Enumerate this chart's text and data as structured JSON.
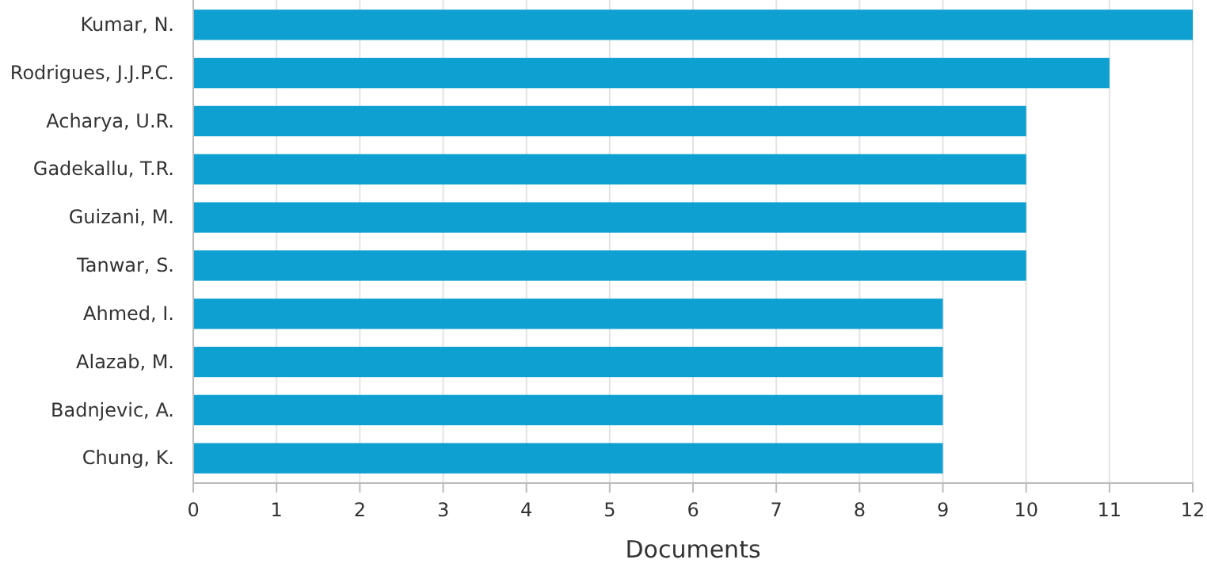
{
  "chart_data": {
    "type": "bar",
    "orientation": "horizontal",
    "xlabel": "Documents",
    "categories": [
      "Kumar, N.",
      "Rodrigues, J.J.P.C.",
      "Acharya, U.R.",
      "Gadekallu, T.R.",
      "Guizani, M.",
      "Tanwar, S.",
      "Ahmed, I.",
      "Alazab, M.",
      "Badnjevic, A.",
      "Chung, K."
    ],
    "values": [
      12,
      11,
      10,
      10,
      10,
      10,
      9,
      9,
      9,
      9
    ],
    "color": "#0ea0d1",
    "xlim": [
      0,
      12
    ],
    "xticks": [
      0,
      1,
      2,
      3,
      4,
      5,
      6,
      7,
      8,
      9,
      10,
      11,
      12
    ],
    "grid": "x"
  }
}
